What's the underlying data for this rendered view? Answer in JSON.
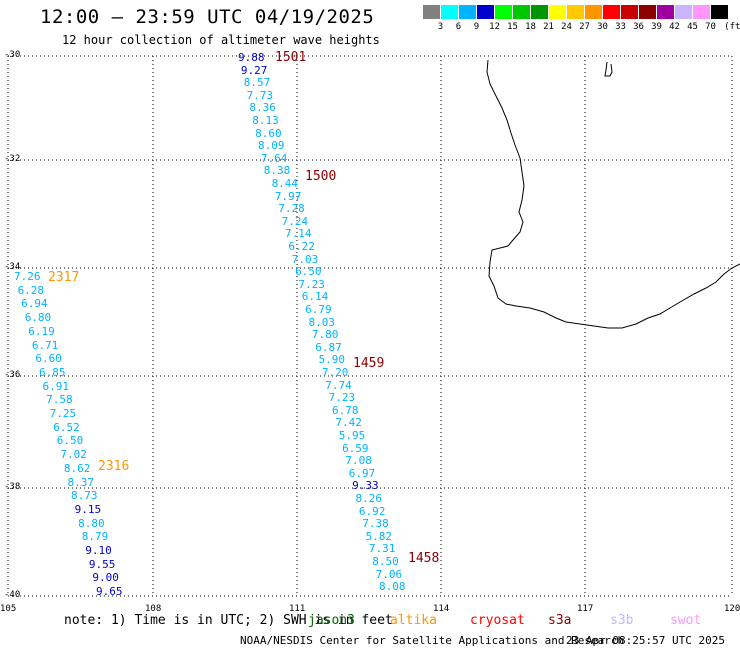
{
  "header": {
    "title": "12:00 – 23:59 UTC 04/19/2025",
    "subtitle": "12 hour collection of altimeter wave heights"
  },
  "legend": {
    "unit": "(ft)",
    "colors": [
      "#808080",
      "#00ffff",
      "#00b4ff",
      "#0000cc",
      "#00ff00",
      "#00c800",
      "#009600",
      "#ffff00",
      "#ffc800",
      "#ff9600",
      "#ff0000",
      "#c80000",
      "#8c0000",
      "#a000a0",
      "#c8b4ff",
      "#ff96ff",
      "#000000"
    ],
    "ticks": [
      "3",
      "6",
      "9",
      "12",
      "15",
      "18",
      "21",
      "24",
      "27",
      "30",
      "33",
      "36",
      "39",
      "42",
      "45",
      "70"
    ]
  },
  "axes": {
    "lat_labels": [
      "-30",
      "-32",
      "-34",
      "-36",
      "-38",
      "-40"
    ],
    "lon_labels": [
      "105",
      "108",
      "111",
      "114",
      "117",
      "120"
    ]
  },
  "map_data": {
    "swath_1": {
      "values": [
        "9.88",
        "9.27",
        "8.57",
        "7.73",
        "8.36",
        "8.13",
        "8.60",
        "8.09",
        "7.64",
        "8.38",
        "8.44",
        "7.97",
        "7.28",
        "7.24",
        "7.14",
        "6.22",
        "7.03",
        "6.50",
        "7.23",
        "6.14",
        "6.79",
        "8.03",
        "7.80",
        "6.87",
        "5.90",
        "7.20",
        "7.74",
        "7.23",
        "6.78",
        "7.42",
        "5.95",
        "6.59",
        "7.08",
        "6.97",
        "9.33",
        "8.26",
        "6.92",
        "7.38",
        "5.82",
        "7.31",
        "8.50",
        "7.06",
        "8.08"
      ],
      "times": [
        "1501",
        "1500",
        "1459",
        "1458"
      ]
    },
    "swath_2": {
      "values": [
        "7.26",
        "6.28",
        "6.94",
        "6.80",
        "6.19",
        "6.71",
        "6.60",
        "6.85",
        "6.91",
        "7.58",
        "7.25",
        "6.52",
        "6.50",
        "7.02",
        "8.62",
        "8.37",
        "8.73",
        "9.15",
        "8.80",
        "8.79",
        "9.10",
        "9.55",
        "9.00",
        "9.65"
      ],
      "times": [
        "2317",
        "2316"
      ]
    },
    "value_colors": {
      "low": "#00b4ff",
      "mid": "#0000cc"
    },
    "time_colors": {
      "swath_1": "#8c0000",
      "swath_2": "#ff9600"
    }
  },
  "footer": {
    "note": "note: 1) Time is in UTC; 2) SWH is in feet",
    "satellites": [
      {
        "name": "jason3",
        "color": "#006400"
      },
      {
        "name": "altika",
        "color": "#ff9600"
      },
      {
        "name": "cryosat",
        "color": "#ff0000"
      },
      {
        "name": "s3a",
        "color": "#8c0000"
      },
      {
        "name": "s3b",
        "color": "#c8b4ff"
      },
      {
        "name": "swot",
        "color": "#ff96ff"
      }
    ],
    "credit": "NOAA/NESDIS Center for Satellite Applications and Research",
    "timestamp": "23 Apr 08:25:57 UTC 2025"
  }
}
